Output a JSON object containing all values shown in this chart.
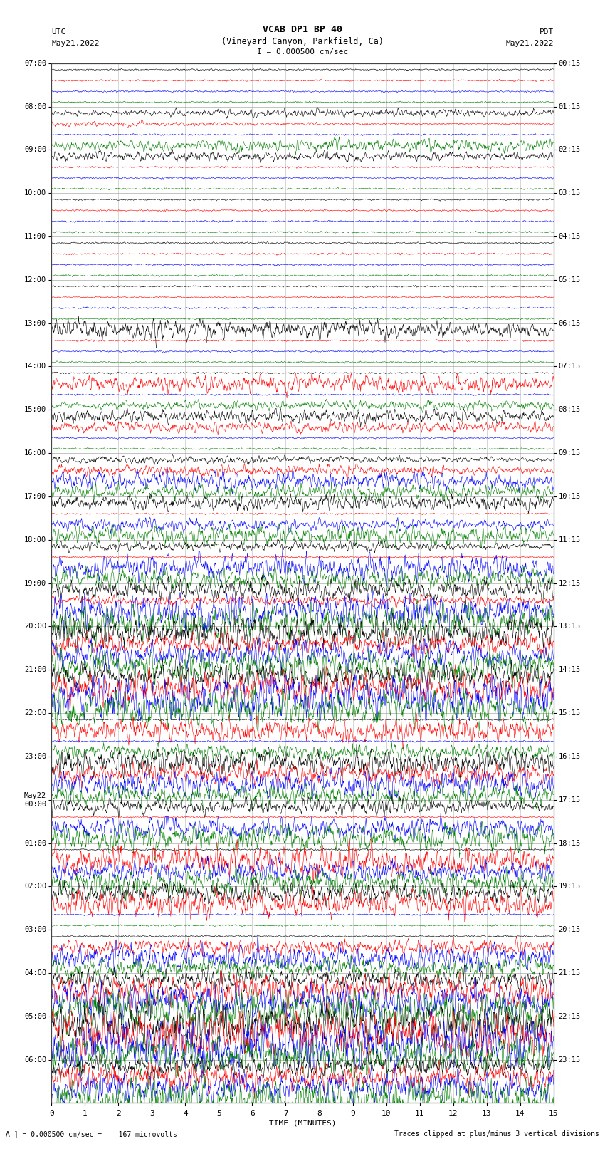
{
  "title_line1": "VCAB DP1 BP 40",
  "title_line2": "(Vineyard Canyon, Parkfield, Ca)",
  "title_line3": "I = 0.000500 cm/sec",
  "left_header1": "UTC",
  "left_header2": "May21,2022",
  "right_header1": "PDT",
  "right_header2": "May21,2022",
  "xlabel": "TIME (MINUTES)",
  "footer_left": "A ] = 0.000500 cm/sec =    167 microvolts",
  "footer_right": "Traces clipped at plus/minus 3 vertical divisions",
  "xmin": 0,
  "xmax": 15,
  "xticks": [
    0,
    1,
    2,
    3,
    4,
    5,
    6,
    7,
    8,
    9,
    10,
    11,
    12,
    13,
    14,
    15
  ],
  "trace_colors": [
    "black",
    "red",
    "blue",
    "green"
  ],
  "bg_color": "white",
  "grid_color": "#888888",
  "left_times_utc": [
    "07:00",
    "08:00",
    "09:00",
    "10:00",
    "11:00",
    "12:00",
    "13:00",
    "14:00",
    "15:00",
    "16:00",
    "17:00",
    "18:00",
    "19:00",
    "20:00",
    "21:00",
    "22:00",
    "23:00",
    "May22\n00:00",
    "01:00",
    "02:00",
    "03:00",
    "04:00",
    "05:00",
    "06:00"
  ],
  "right_times_pdt": [
    "00:15",
    "01:15",
    "02:15",
    "03:15",
    "04:15",
    "05:15",
    "06:15",
    "07:15",
    "08:15",
    "09:15",
    "10:15",
    "11:15",
    "12:15",
    "13:15",
    "14:15",
    "15:15",
    "16:15",
    "17:15",
    "18:15",
    "19:15",
    "20:15",
    "21:15",
    "22:15",
    "23:15"
  ],
  "n_hours": 24,
  "seed": 42,
  "noise_amp": 0.12,
  "events": [
    {
      "hour": 1,
      "ci": 3,
      "minute": 12.0,
      "amp": 1.2,
      "dur": 0.8
    },
    {
      "hour": 1,
      "ci": 1,
      "minute": 0.3,
      "amp": 0.5,
      "dur": 0.3
    },
    {
      "hour": 1,
      "ci": 0,
      "minute": 11.5,
      "amp": 0.8,
      "dur": 0.5
    },
    {
      "hour": 2,
      "ci": 0,
      "minute": 2.8,
      "amp": 1.0,
      "dur": 0.7
    },
    {
      "hour": 6,
      "ci": 0,
      "minute": 1.5,
      "amp": 1.5,
      "dur": 0.8
    },
    {
      "hour": 6,
      "ci": 0,
      "minute": 1.8,
      "amp": 1.2,
      "dur": 1.0
    },
    {
      "hour": 7,
      "ci": 3,
      "minute": 9.5,
      "amp": 0.9,
      "dur": 0.6
    },
    {
      "hour": 7,
      "ci": 1,
      "minute": 5.5,
      "amp": 1.2,
      "dur": 0.8
    },
    {
      "hour": 7,
      "ci": 1,
      "minute": 9.0,
      "amp": 0.8,
      "dur": 0.6
    },
    {
      "hour": 7,
      "ci": 1,
      "minute": 14.5,
      "amp": 1.0,
      "dur": 0.7
    },
    {
      "hour": 8,
      "ci": 0,
      "minute": 4.5,
      "amp": 1.3,
      "dur": 0.9
    },
    {
      "hour": 8,
      "ci": 1,
      "minute": 4.0,
      "amp": 0.9,
      "dur": 0.6
    },
    {
      "hour": 8,
      "ci": 1,
      "minute": 9.5,
      "amp": 0.8,
      "dur": 0.5
    },
    {
      "hour": 9,
      "ci": 0,
      "minute": 1.2,
      "amp": 0.8,
      "dur": 0.5
    },
    {
      "hour": 9,
      "ci": 1,
      "minute": 3.0,
      "amp": 1.0,
      "dur": 0.7
    },
    {
      "hour": 9,
      "ci": 2,
      "minute": 1.0,
      "amp": 1.5,
      "dur": 1.0
    },
    {
      "hour": 9,
      "ci": 2,
      "minute": 7.0,
      "amp": 1.0,
      "dur": 0.7
    },
    {
      "hour": 9,
      "ci": 3,
      "minute": 7.0,
      "amp": 1.2,
      "dur": 0.8
    },
    {
      "hour": 9,
      "ci": 3,
      "minute": 10.0,
      "amp": 1.0,
      "dur": 0.7
    },
    {
      "hour": 10,
      "ci": 0,
      "minute": 3.5,
      "amp": 0.8,
      "dur": 0.5
    },
    {
      "hour": 10,
      "ci": 0,
      "minute": 9.0,
      "amp": 1.0,
      "dur": 0.7
    },
    {
      "hour": 10,
      "ci": 0,
      "minute": 14.0,
      "amp": 1.0,
      "dur": 0.7
    },
    {
      "hour": 10,
      "ci": 2,
      "minute": 1.5,
      "amp": 1.2,
      "dur": 0.8
    },
    {
      "hour": 10,
      "ci": 3,
      "minute": 5.0,
      "amp": 1.2,
      "dur": 0.8
    },
    {
      "hour": 10,
      "ci": 3,
      "minute": 10.5,
      "amp": 1.5,
      "dur": 1.0
    },
    {
      "hour": 11,
      "ci": 0,
      "minute": 2.5,
      "amp": 1.0,
      "dur": 0.7
    },
    {
      "hour": 11,
      "ci": 3,
      "minute": 4.0,
      "amp": 1.2,
      "dur": 0.8
    },
    {
      "hour": 11,
      "ci": 3,
      "minute": 9.0,
      "amp": 1.5,
      "dur": 1.0
    },
    {
      "hour": 11,
      "ci": 2,
      "minute": 8.0,
      "amp": 2.0,
      "dur": 1.2
    },
    {
      "hour": 11,
      "ci": 2,
      "minute": 10.5,
      "amp": 1.5,
      "dur": 0.9
    },
    {
      "hour": 12,
      "ci": 0,
      "minute": 7.0,
      "amp": 1.2,
      "dur": 0.8
    },
    {
      "hour": 12,
      "ci": 0,
      "minute": 8.5,
      "amp": 1.5,
      "dur": 1.0
    },
    {
      "hour": 12,
      "ci": 3,
      "minute": 5.5,
      "amp": 2.0,
      "dur": 1.5
    },
    {
      "hour": 12,
      "ci": 3,
      "minute": 9.0,
      "amp": 2.5,
      "dur": 1.5
    },
    {
      "hour": 12,
      "ci": 1,
      "minute": 5.5,
      "amp": 1.0,
      "dur": 0.8
    },
    {
      "hour": 12,
      "ci": 2,
      "minute": 5.5,
      "amp": 2.0,
      "dur": 1.2
    },
    {
      "hour": 12,
      "ci": 2,
      "minute": 9.0,
      "amp": 2.5,
      "dur": 1.5
    },
    {
      "hour": 13,
      "ci": 0,
      "minute": 5.0,
      "amp": 3.0,
      "dur": 2.0
    },
    {
      "hour": 13,
      "ci": 1,
      "minute": 5.5,
      "amp": 2.0,
      "dur": 1.5
    },
    {
      "hour": 13,
      "ci": 2,
      "minute": 5.0,
      "amp": 2.5,
      "dur": 1.5
    },
    {
      "hour": 13,
      "ci": 3,
      "minute": 5.0,
      "amp": 3.0,
      "dur": 2.0
    },
    {
      "hour": 14,
      "ci": 0,
      "minute": 2.0,
      "amp": 2.5,
      "dur": 1.5
    },
    {
      "hour": 14,
      "ci": 1,
      "minute": 1.5,
      "amp": 3.0,
      "dur": 2.0
    },
    {
      "hour": 14,
      "ci": 2,
      "minute": 1.5,
      "amp": 4.0,
      "dur": 2.5
    },
    {
      "hour": 14,
      "ci": 3,
      "minute": 1.5,
      "amp": 3.0,
      "dur": 2.0
    },
    {
      "hour": 14,
      "ci": 2,
      "minute": 6.0,
      "amp": 1.5,
      "dur": 1.0
    },
    {
      "hour": 14,
      "ci": 3,
      "minute": 6.0,
      "amp": 1.5,
      "dur": 1.0
    },
    {
      "hour": 15,
      "ci": 1,
      "minute": 6.0,
      "amp": 2.0,
      "dur": 1.2
    },
    {
      "hour": 15,
      "ci": 3,
      "minute": 6.5,
      "amp": 1.5,
      "dur": 1.0
    },
    {
      "hour": 15,
      "ci": 1,
      "minute": 12.0,
      "amp": 1.2,
      "dur": 0.8
    },
    {
      "hour": 16,
      "ci": 0,
      "minute": 6.0,
      "amp": 2.5,
      "dur": 1.5
    },
    {
      "hour": 16,
      "ci": 1,
      "minute": 6.0,
      "amp": 2.0,
      "dur": 1.2
    },
    {
      "hour": 16,
      "ci": 2,
      "minute": 6.5,
      "amp": 2.5,
      "dur": 1.5
    },
    {
      "hour": 16,
      "ci": 3,
      "minute": 6.5,
      "amp": 2.0,
      "dur": 1.2
    },
    {
      "hour": 17,
      "ci": 0,
      "minute": 7.0,
      "amp": 1.5,
      "dur": 1.0
    },
    {
      "hour": 17,
      "ci": 2,
      "minute": 7.0,
      "amp": 2.0,
      "dur": 1.2
    },
    {
      "hour": 17,
      "ci": 3,
      "minute": 7.0,
      "amp": 2.5,
      "dur": 1.5
    },
    {
      "hour": 18,
      "ci": 1,
      "minute": 5.0,
      "amp": 2.5,
      "dur": 1.5
    },
    {
      "hour": 18,
      "ci": 1,
      "minute": 7.0,
      "amp": 1.5,
      "dur": 1.0
    },
    {
      "hour": 18,
      "ci": 2,
      "minute": 5.5,
      "amp": 2.0,
      "dur": 1.2
    },
    {
      "hour": 18,
      "ci": 3,
      "minute": 5.5,
      "amp": 2.5,
      "dur": 1.5
    },
    {
      "hour": 19,
      "ci": 0,
      "minute": 3.0,
      "amp": 2.0,
      "dur": 1.2
    },
    {
      "hour": 19,
      "ci": 1,
      "minute": 3.5,
      "amp": 2.5,
      "dur": 1.5
    },
    {
      "hour": 20,
      "ci": 1,
      "minute": 6.0,
      "amp": 1.5,
      "dur": 1.0
    },
    {
      "hour": 20,
      "ci": 2,
      "minute": 7.0,
      "amp": 2.5,
      "dur": 1.5
    },
    {
      "hour": 20,
      "ci": 3,
      "minute": 14.0,
      "amp": 2.0,
      "dur": 1.5
    },
    {
      "hour": 21,
      "ci": 0,
      "minute": 5.5,
      "amp": 2.0,
      "dur": 1.2
    },
    {
      "hour": 21,
      "ci": 1,
      "minute": 5.5,
      "amp": 3.0,
      "dur": 1.8
    },
    {
      "hour": 21,
      "ci": 2,
      "minute": 5.5,
      "amp": 3.5,
      "dur": 2.0
    },
    {
      "hour": 21,
      "ci": 3,
      "minute": 5.5,
      "amp": 4.0,
      "dur": 2.5
    },
    {
      "hour": 22,
      "ci": 0,
      "minute": 5.5,
      "amp": 3.5,
      "dur": 2.0
    },
    {
      "hour": 22,
      "ci": 1,
      "minute": 5.5,
      "amp": 4.0,
      "dur": 2.5
    },
    {
      "hour": 22,
      "ci": 2,
      "minute": 5.5,
      "amp": 5.0,
      "dur": 3.0
    },
    {
      "hour": 22,
      "ci": 3,
      "minute": 5.5,
      "amp": 3.5,
      "dur": 2.0
    },
    {
      "hour": 22,
      "ci": 0,
      "minute": 9.0,
      "amp": 2.5,
      "dur": 1.5
    },
    {
      "hour": 22,
      "ci": 1,
      "minute": 9.5,
      "amp": 2.0,
      "dur": 1.2
    },
    {
      "hour": 23,
      "ci": 0,
      "minute": 4.0,
      "amp": 2.0,
      "dur": 1.5
    },
    {
      "hour": 23,
      "ci": 1,
      "minute": 4.5,
      "amp": 2.5,
      "dur": 1.5
    },
    {
      "hour": 23,
      "ci": 2,
      "minute": 4.5,
      "amp": 3.0,
      "dur": 2.0
    },
    {
      "hour": 23,
      "ci": 3,
      "minute": 5.0,
      "amp": 4.0,
      "dur": 2.5
    }
  ]
}
